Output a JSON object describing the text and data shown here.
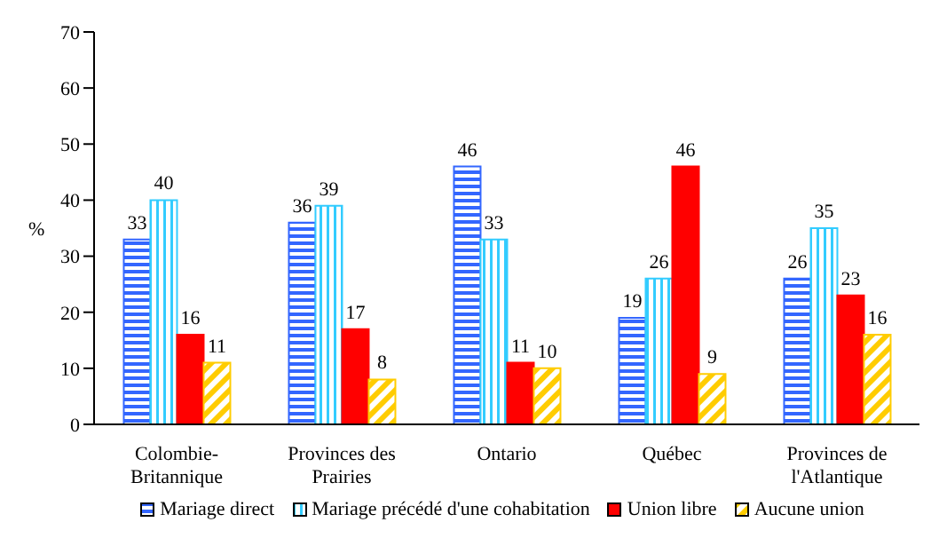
{
  "chart_data": {
    "type": "bar",
    "ylabel": "%",
    "categories": [
      "Colombie-Britannique",
      "Provinces des Prairies",
      "Ontario",
      "Québec",
      "Provinces de l'Atlantique"
    ],
    "series": [
      {
        "name": "Mariage direct",
        "color": "#3366ff",
        "values": [
          33,
          36,
          46,
          19,
          26
        ]
      },
      {
        "name": "Mariage précédé d'une cohabitation",
        "color": "#33ccff",
        "values": [
          40,
          39,
          33,
          26,
          35
        ]
      },
      {
        "name": "Union libre",
        "color": "#ff0000",
        "values": [
          16,
          17,
          11,
          46,
          23
        ]
      },
      {
        "name": "Aucune union",
        "color": "#ffcc00",
        "values": [
          11,
          8,
          10,
          9,
          16
        ]
      }
    ],
    "ylim": [
      0,
      70
    ],
    "yticks": [
      0,
      10,
      20,
      30,
      40,
      50,
      60,
      70
    ],
    "grid": false,
    "legend": "bottom",
    "data_labels": true
  }
}
